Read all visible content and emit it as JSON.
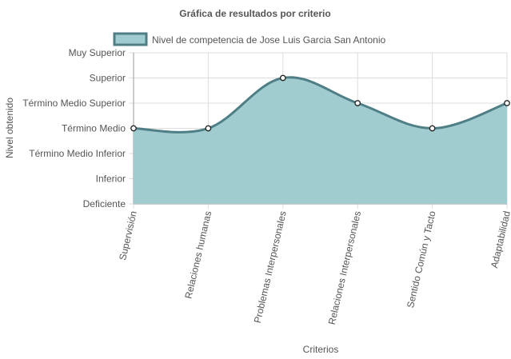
{
  "chart_data": {
    "type": "area",
    "title": "Gráfica de resultados por criterio",
    "xlabel": "Criterios",
    "ylabel": "Nivel obtenido",
    "legend_position": "top",
    "grid": true,
    "y_levels": [
      "Deficiente",
      "Inferior",
      "Término Medio Inferior",
      "Término Medio",
      "Término Medio Superior",
      "Superior",
      "Muy Superior"
    ],
    "ylim": [
      1,
      7
    ],
    "categories": [
      "Supervisión",
      "Relaciones humanas",
      "Problemas Interpersonales",
      "Relaciones Interpersonales",
      "Sentido Común y Tacto",
      "Adaptabilidad"
    ],
    "series": [
      {
        "name": "Nivel de competencia de Jose Luis Garcia San Antonio",
        "values": [
          4,
          4,
          6,
          5,
          4,
          5
        ],
        "fill_color": "#a1cccf",
        "line_color": "#4f7f86"
      }
    ]
  }
}
